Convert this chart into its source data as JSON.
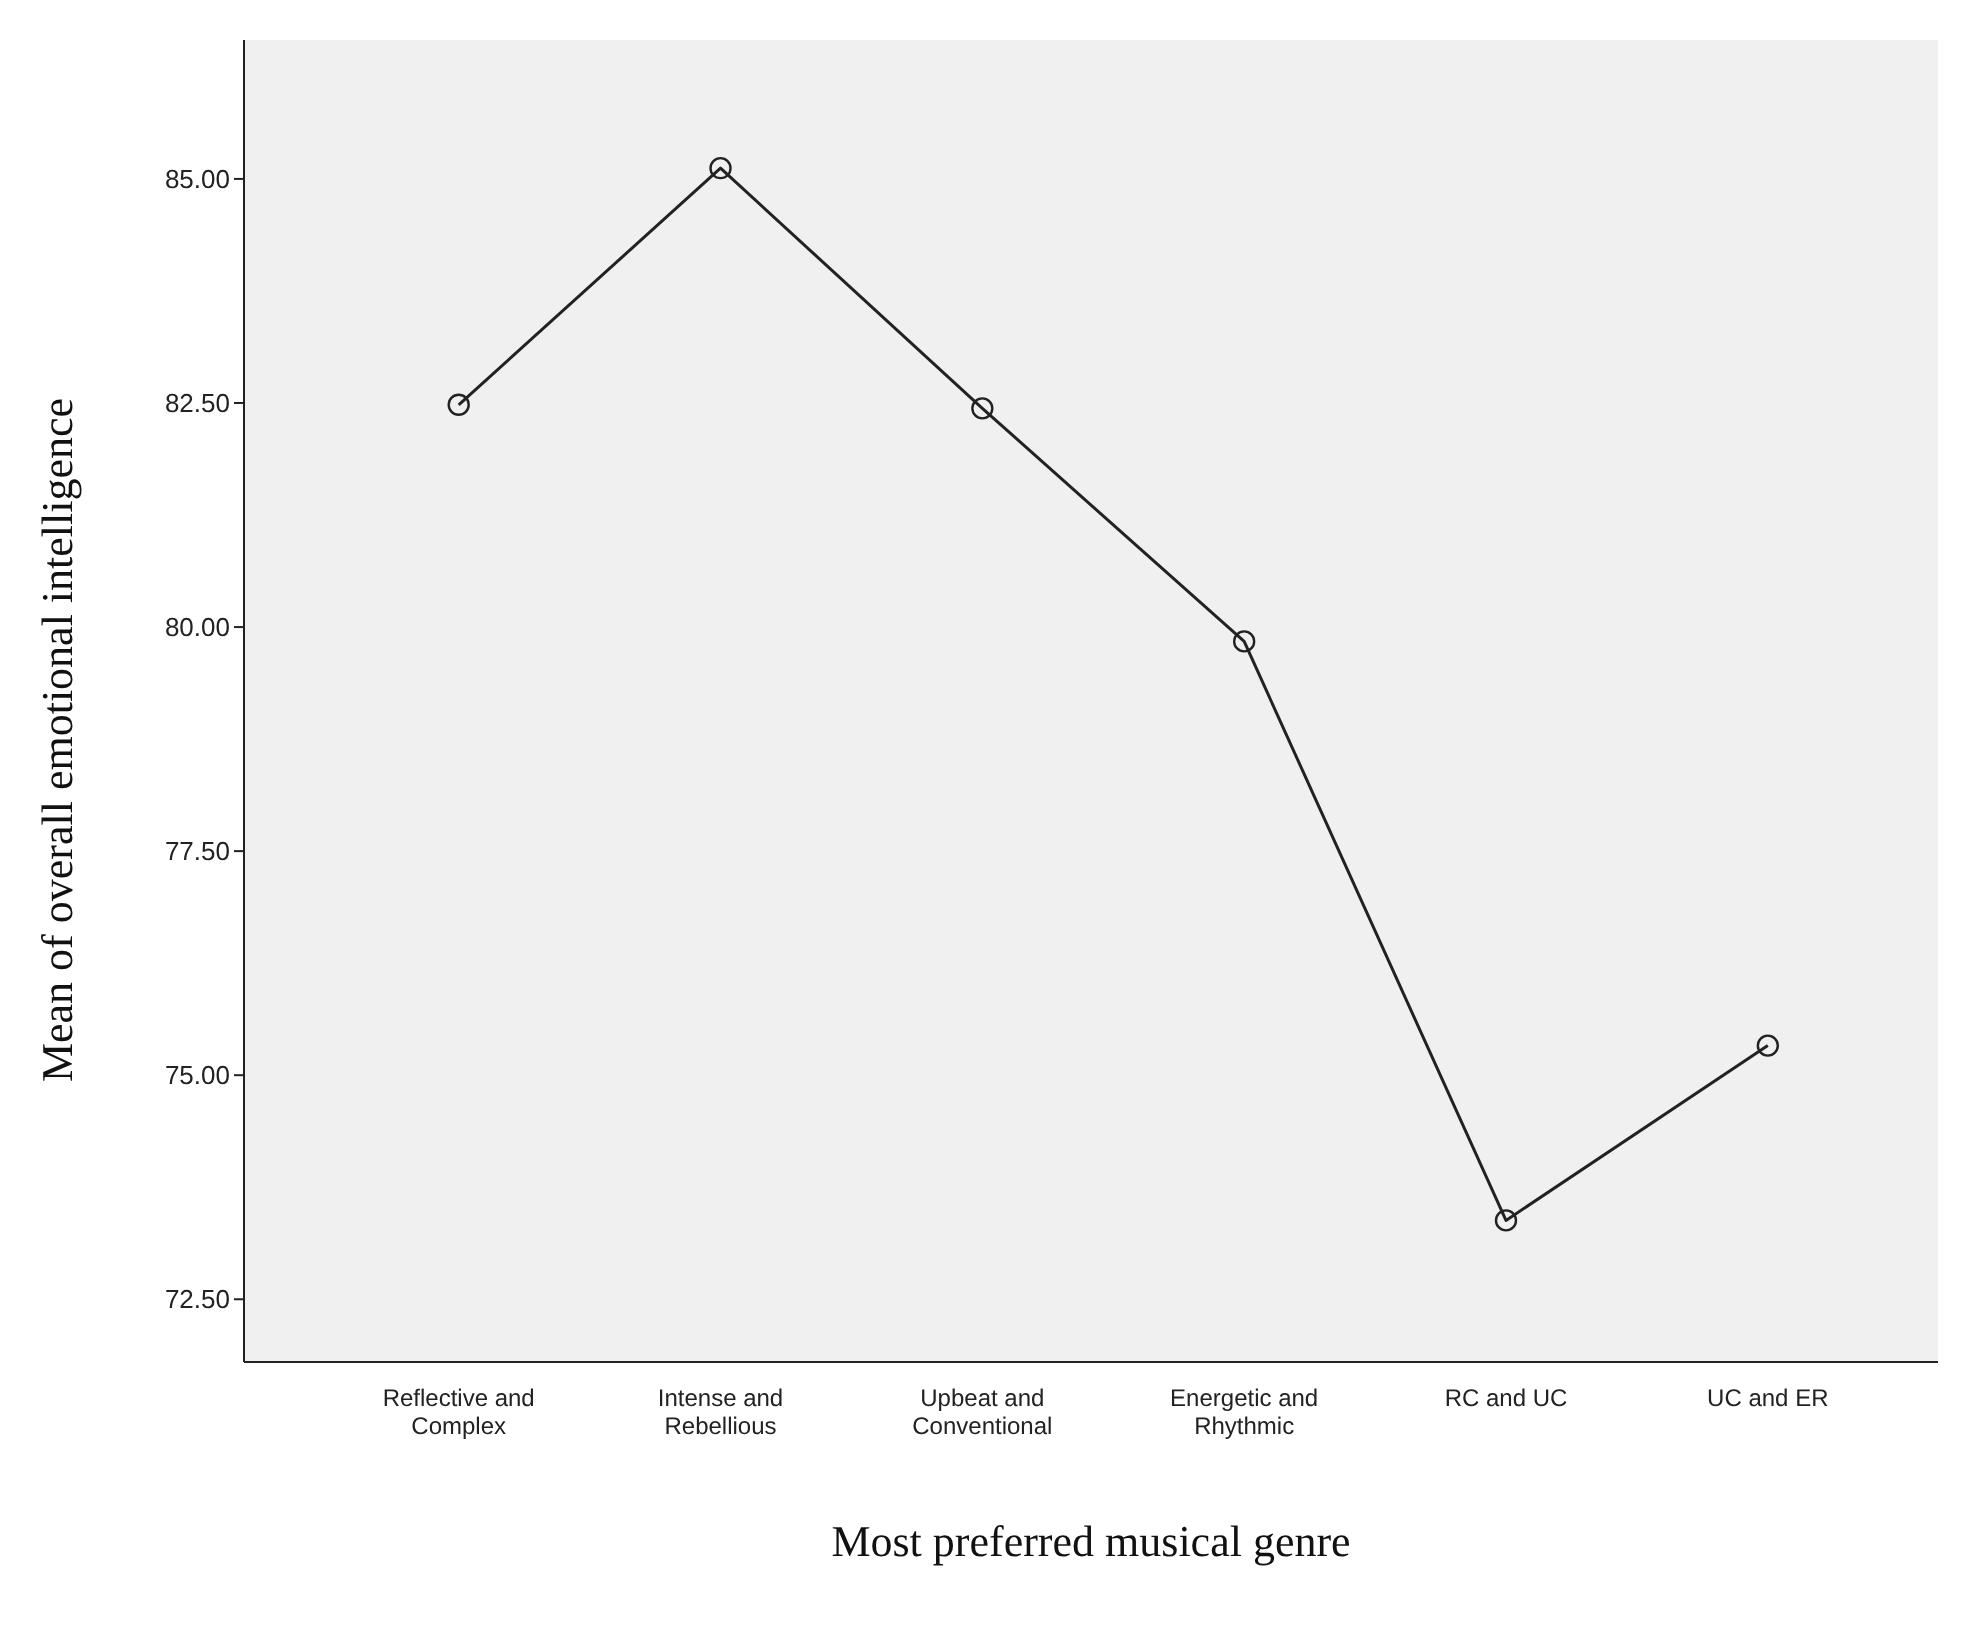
{
  "chart_data": {
    "type": "line",
    "xlabel": "Most preferred musical genre",
    "ylabel": "Mean of overall emotional intelligence",
    "categories": [
      "Reflective and Complex",
      "Intense and Rebellious",
      "Upbeat and Conventional",
      "Energetic and Rhythmic",
      "RC and UC",
      "UC and ER"
    ],
    "series": [
      {
        "color": "#222222",
        "values": [
          82.48,
          85.12,
          82.44,
          79.84,
          73.38,
          75.33
        ]
      }
    ],
    "ylim": [
      71.8,
      86.55
    ],
    "yticks": [
      {
        "value": 72.5,
        "label": "72.50"
      },
      {
        "value": 75,
        "label": "75.00"
      },
      {
        "value": 77.5,
        "label": "77.50"
      },
      {
        "value": 80,
        "label": "80.00"
      },
      {
        "value": 82.5,
        "label": "82.50"
      },
      {
        "value": 85,
        "label": "85.00"
      }
    ],
    "grid": false,
    "marker": "circle",
    "line_style": "solid"
  }
}
